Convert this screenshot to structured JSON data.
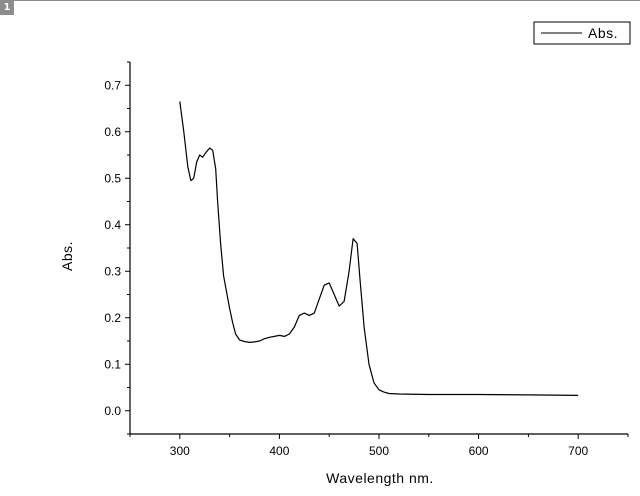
{
  "page_marker": "1",
  "chart_data": {
    "type": "line",
    "title": "",
    "xlabel": "Wavelength nm.",
    "ylabel": "Abs.",
    "xlim": [
      250,
      750
    ],
    "ylim": [
      -0.05,
      0.75
    ],
    "x_ticks": [
      300,
      400,
      500,
      600,
      700
    ],
    "y_ticks": [
      0.0,
      0.1,
      0.2,
      0.3,
      0.4,
      0.5,
      0.6,
      0.7
    ],
    "grid": false,
    "legend_position": "top-right",
    "color": "#000000",
    "series": [
      {
        "name": "Abs.",
        "x": [
          300,
          304,
          308,
          311,
          314,
          317,
          320,
          323,
          326,
          330,
          333,
          336,
          338,
          341,
          344,
          347,
          350,
          353,
          356,
          360,
          365,
          370,
          375,
          380,
          385,
          390,
          395,
          400,
          405,
          410,
          415,
          420,
          425,
          430,
          435,
          440,
          445,
          450,
          455,
          460,
          465,
          470,
          474,
          478,
          481,
          485,
          490,
          495,
          500,
          505,
          510,
          520,
          550,
          600,
          650,
          700
        ],
        "y": [
          0.665,
          0.6,
          0.525,
          0.495,
          0.5,
          0.535,
          0.55,
          0.545,
          0.555,
          0.565,
          0.56,
          0.52,
          0.45,
          0.36,
          0.29,
          0.255,
          0.22,
          0.19,
          0.165,
          0.152,
          0.149,
          0.147,
          0.148,
          0.15,
          0.155,
          0.158,
          0.16,
          0.162,
          0.16,
          0.165,
          0.18,
          0.205,
          0.21,
          0.205,
          0.21,
          0.24,
          0.27,
          0.275,
          0.25,
          0.225,
          0.235,
          0.3,
          0.37,
          0.36,
          0.28,
          0.18,
          0.1,
          0.06,
          0.045,
          0.04,
          0.037,
          0.036,
          0.035,
          0.035,
          0.034,
          0.033
        ]
      }
    ]
  }
}
